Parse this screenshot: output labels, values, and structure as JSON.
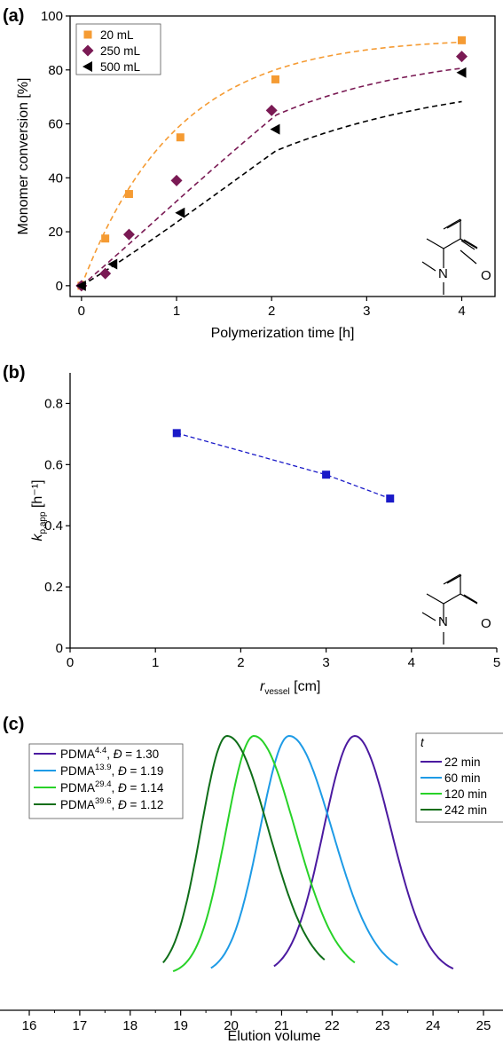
{
  "chart_data": [
    {
      "type": "scatter",
      "panel_label": "(a)",
      "xlabel": "Polymerization time [h]",
      "ylabel": "Monomer conversion [%]",
      "xlim": [
        -0.12,
        4.35
      ],
      "ylim": [
        -4,
        100
      ],
      "x_ticks": [
        0,
        1,
        2,
        3,
        4
      ],
      "y_ticks": [
        0,
        20,
        40,
        60,
        80,
        100
      ],
      "legend_position": "top-left",
      "series": [
        {
          "name": "20 mL",
          "color": "#f59b33",
          "marker": "square",
          "x": [
            0,
            0.25,
            0.5,
            1.04,
            2.04,
            4.0
          ],
          "y": [
            0,
            17.5,
            34,
            55,
            76.5,
            91
          ],
          "fit": {
            "A": 92,
            "k": 1.0
          }
        },
        {
          "name": "250 mL",
          "color": "#7a1a54",
          "marker": "diamond",
          "x": [
            0,
            0.25,
            0.5,
            1.0,
            2.0,
            4.0
          ],
          "y": [
            0,
            4.5,
            19,
            39,
            65,
            85
          ],
          "fit": {
            "A": 88,
            "k": 0.62
          }
        },
        {
          "name": "500 mL",
          "color": "#000000",
          "marker": "triangle-left",
          "x": [
            0,
            0.33,
            1.04,
            2.04,
            4.0
          ],
          "y": [
            0,
            8,
            27,
            58,
            79
          ],
          "fit": {
            "A": 80,
            "k": 0.48
          }
        }
      ]
    },
    {
      "type": "scatter",
      "panel_label": "(b)",
      "xlabel_main": "r",
      "xlabel_sub": "vessel",
      "xlabel_unit": " [cm]",
      "ylabel_main": "k",
      "ylabel_sub": "p,app",
      "ylabel_unit": " [h⁻¹]",
      "xlim": [
        0,
        5
      ],
      "ylim": [
        0,
        0.9
      ],
      "x_ticks": [
        0,
        1,
        2,
        3,
        4,
        5
      ],
      "y_ticks": [
        0,
        0.2,
        0.4,
        0.6,
        0.8
      ],
      "series": [
        {
          "color": "#1a1ac8",
          "marker": "square",
          "x": [
            1.25,
            3.0,
            3.75
          ],
          "y": [
            0.703,
            0.567,
            0.489
          ]
        }
      ]
    },
    {
      "type": "line",
      "panel_label": "(c)",
      "xlabel": "Elution volume",
      "xlim": [
        16,
        25.3
      ],
      "x_ticks": [
        16,
        17,
        18,
        19,
        20,
        21,
        22,
        23,
        24,
        25
      ],
      "legend_left": {
        "entries": [
          {
            "label": "PDMA",
            "sup": "4.4",
            "d": "1.30"
          },
          {
            "label": "PDMA",
            "sup": "13.9",
            "d": "1.19"
          },
          {
            "label": "PDMA",
            "sup": "29.4",
            "d": "1.14"
          },
          {
            "label": "PDMA",
            "sup": "39.6",
            "d": "1.12"
          }
        ],
        "d_symbol": "Đ",
        "eq": " = "
      },
      "legend_right": {
        "title": "t",
        "entries": [
          "22 min",
          "60 min",
          "120 min",
          "242 min"
        ]
      },
      "series": [
        {
          "name": "22 min",
          "color": "#4b1aa0",
          "peak": 22.45,
          "sl": 0.62,
          "sr": 0.72,
          "start": 20.85,
          "end": 24.4
        },
        {
          "name": "60 min",
          "color": "#1e9be6",
          "peak": 21.15,
          "sl": 0.58,
          "sr": 0.85,
          "start": 19.6,
          "end": 23.3
        },
        {
          "name": "120 min",
          "color": "#28d228",
          "peak": 20.45,
          "sl": 0.55,
          "sr": 0.82,
          "start": 18.85,
          "end": 22.45
        },
        {
          "name": "242 min",
          "color": "#0f6e19",
          "peak": 19.92,
          "sl": 0.52,
          "sr": 0.82,
          "start": 18.65,
          "end": 21.85
        }
      ]
    }
  ]
}
